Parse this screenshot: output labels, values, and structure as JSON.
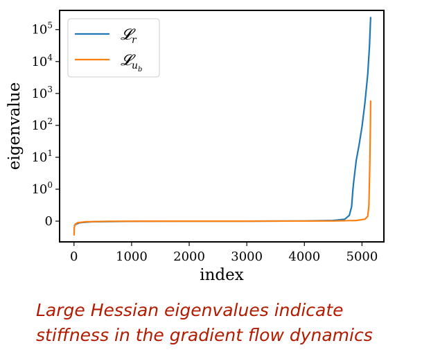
{
  "chart_data": {
    "type": "line",
    "xlabel": "index",
    "ylabel": "eigenvalue",
    "yscale": "symlog",
    "xlim": [
      -250,
      5380
    ],
    "ylim": [
      -0.65,
      400000
    ],
    "xticks": [
      0,
      1000,
      2000,
      3000,
      4000,
      5000
    ],
    "xtick_labels": [
      "0",
      "1000",
      "2000",
      "3000",
      "4000",
      "5000"
    ],
    "yticks": [
      0,
      1,
      10,
      100,
      1000,
      10000,
      100000
    ],
    "ytick_labels": [
      {
        "base": "0",
        "exp": ""
      },
      {
        "base": "10",
        "exp": "0"
      },
      {
        "base": "10",
        "exp": "1"
      },
      {
        "base": "10",
        "exp": "2"
      },
      {
        "base": "10",
        "exp": "3"
      },
      {
        "base": "10",
        "exp": "4"
      },
      {
        "base": "10",
        "exp": "5"
      }
    ],
    "grid": false,
    "legend_position": "upper-left",
    "series": [
      {
        "name": "𝓛",
        "sub": "r",
        "subsub": "",
        "color": "#1f77b4",
        "points": [
          [
            0,
            -0.15
          ],
          [
            30,
            -0.1
          ],
          [
            100,
            -0.05
          ],
          [
            300,
            -0.02
          ],
          [
            1000,
            -0.005
          ],
          [
            2000,
            0
          ],
          [
            3000,
            0
          ],
          [
            4000,
            0.005
          ],
          [
            4500,
            0.02
          ],
          [
            4700,
            0.06
          ],
          [
            4780,
            0.18
          ],
          [
            4820,
            0.45
          ],
          [
            4845,
            1.1
          ],
          [
            4860,
            2.0
          ],
          [
            4900,
            8
          ],
          [
            4950,
            25
          ],
          [
            5000,
            90
          ],
          [
            5050,
            500
          ],
          [
            5100,
            4000
          ],
          [
            5130,
            30000
          ],
          [
            5150,
            250000
          ]
        ]
      },
      {
        "name": "𝓛",
        "sub": "u",
        "subsub": "b",
        "color": "#ff7f0e",
        "points": [
          [
            0,
            -0.45
          ],
          [
            5,
            -0.2
          ],
          [
            20,
            -0.1
          ],
          [
            60,
            -0.05
          ],
          [
            200,
            -0.02
          ],
          [
            600,
            -0.005
          ],
          [
            1500,
            0
          ],
          [
            3000,
            0
          ],
          [
            4500,
            0.005
          ],
          [
            4900,
            0.02
          ],
          [
            5050,
            0.06
          ],
          [
            5100,
            0.15
          ],
          [
            5120,
            0.5
          ],
          [
            5135,
            5
          ],
          [
            5145,
            80
          ],
          [
            5150,
            600
          ]
        ]
      }
    ]
  },
  "caption": {
    "line1": "Large Hessian eigenvalues indicate",
    "line2": "stiffness in the gradient flow dynamics"
  }
}
